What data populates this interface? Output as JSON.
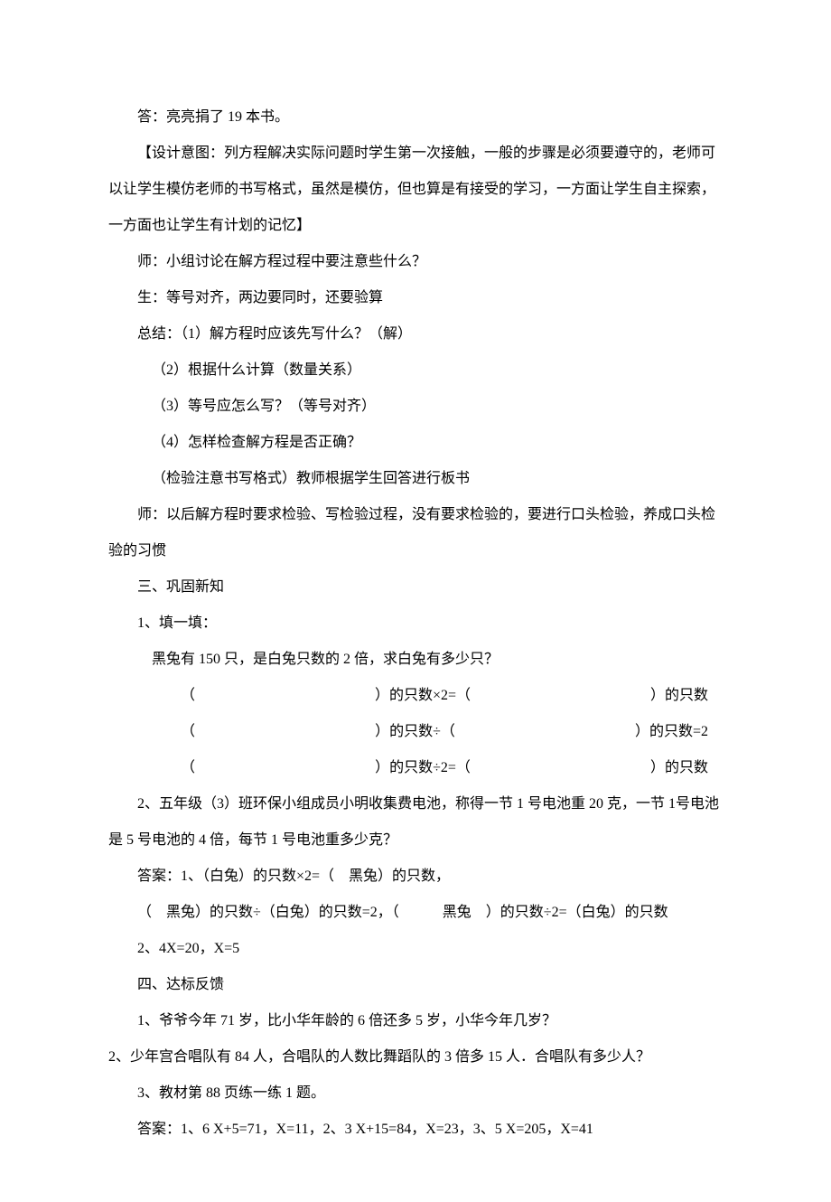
{
  "background_color": "#ffffff",
  "text_color": "#000000",
  "font_size": 16,
  "lines": {
    "l1": "答：亮亮捐了 19 本书。",
    "l2": "【设计意图：列方程解决实际问题时学生第一次接触，一般的步骤是必须要遵守的，老师可以让学生模仿老师的书写格式，虽然是模仿，但也算是有接受的学习，一方面让学生自主探索，一方面也让学生有计划的记忆】",
    "l3": "师：小组讨论在解方程过程中要注意些什么？",
    "l4": "生：等号对齐，两边要同时，还要验算",
    "l5": "总结：（1）解方程时应该先写什么？（解）",
    "l6": "（2）根据什么计算（数量关系）",
    "l7": "（3）等号应怎么写？（等号对齐）",
    "l8": "（4）怎样检查解方程是否正确？",
    "l9": "（检验注意书写格式）教师根据学生回答进行板书",
    "l10": "师：以后解方程时要求检验、写检验过程，没有要求检验的，要进行口头检验，养成口头检验的习惯",
    "l11": "三、巩固新知",
    "l12": "1、填一填：",
    "l13": "黑兔有 150 只，是白兔只数的 2 倍，求白兔有多少只？",
    "fill1_left": "（",
    "fill1_mid": "）的只数×2=（",
    "fill1_right": "）的只数",
    "fill2_left": "（",
    "fill2_mid": "）的只数÷（",
    "fill2_right": "）的只数=2",
    "fill3_left": "（",
    "fill3_mid": "）的只数÷2=（",
    "fill3_right": "）的只数",
    "l14": "2、五年级（3）班环保小组成员小明收集费电池，称得一节 1 号电池重 20 克，一节 1号电池是 5 号电池的 4 倍，每节 1 号电池重多少克？",
    "l15": "答案：1、（白兔）的只数×2=（　黑兔）的只数，",
    "l16": "（　黑兔）的只数÷（白兔）的只数=2，（　　　黑兔　）的只数÷2=（白兔）的只数",
    "l17": "2、4X=20，X=5",
    "l18": "四、达标反馈",
    "l19": "1、爷爷今年 71 岁，比小华年龄的 6 倍还多 5 岁，小华今年几岁？",
    "l20": "2、少年宫合唱队有 84 人，合唱队的人数比舞蹈队的 3 倍多 15 人．合唱队有多少人？",
    "l21": "3、教材第 88 页练一练 1 题。",
    "l22": "答案：1、6 X+5=71，X=11，2、3 X+15=84，X=23，3、5 X=205，X=41"
  }
}
